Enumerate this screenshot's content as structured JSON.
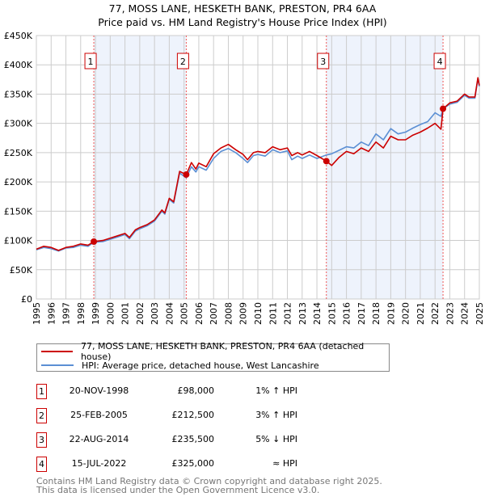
{
  "chart_data": {
    "type": "line",
    "title": "77, MOSS LANE, HESKETH BANK, PRESTON, PR4 6AA",
    "subtitle": "Price paid vs. HM Land Registry's House Price Index (HPI)",
    "xlim": [
      1995,
      2025
    ],
    "ylim": [
      0,
      450000
    ],
    "grid": true,
    "x_ticks": [
      "1995",
      "1996",
      "1997",
      "1998",
      "1999",
      "2000",
      "2001",
      "2002",
      "2003",
      "2004",
      "2005",
      "2006",
      "2007",
      "2008",
      "2009",
      "2010",
      "2011",
      "2012",
      "2013",
      "2014",
      "2015",
      "2016",
      "2017",
      "2018",
      "2019",
      "2020",
      "2021",
      "2022",
      "2023",
      "2024",
      "2025"
    ],
    "y_ticks": [
      {
        "v": 0,
        "label": "£0"
      },
      {
        "v": 50000,
        "label": "£50K"
      },
      {
        "v": 100000,
        "label": "£100K"
      },
      {
        "v": 150000,
        "label": "£150K"
      },
      {
        "v": 200000,
        "label": "£200K"
      },
      {
        "v": 250000,
        "label": "£250K"
      },
      {
        "v": 300000,
        "label": "£300K"
      },
      {
        "v": 350000,
        "label": "£350K"
      },
      {
        "v": 400000,
        "label": "£400K"
      },
      {
        "v": 450000,
        "label": "£450K"
      }
    ],
    "series": [
      {
        "name": "77, MOSS LANE, HESKETH BANK, PRESTON, PR4 6AA (detached house)",
        "color": "#cc0000",
        "x": [
          1995,
          1995.5,
          1996,
          1996.5,
          1997,
          1997.5,
          1998,
          1998.5,
          1998.89,
          1999.5,
          2000,
          2000.5,
          2001,
          2001.3,
          2001.7,
          2002,
          2002.5,
          2003,
          2003.5,
          2003.7,
          2004,
          2004.3,
          2004.7,
          2005.15,
          2005.5,
          2005.8,
          2006,
          2006.5,
          2007,
          2007.5,
          2008,
          2008.5,
          2009,
          2009.3,
          2009.7,
          2010,
          2010.5,
          2011,
          2011.5,
          2012,
          2012.3,
          2012.7,
          2013,
          2013.5,
          2014,
          2014.64,
          2015,
          2015.5,
          2016,
          2016.5,
          2017,
          2017.5,
          2018,
          2018.5,
          2019,
          2019.5,
          2020,
          2020.5,
          2021,
          2021.5,
          2022,
          2022.4,
          2022.54,
          2023,
          2023.5,
          2024,
          2024.3,
          2024.7,
          2024.9,
          2025
        ],
        "y": [
          85000,
          90000,
          88000,
          83000,
          88000,
          90000,
          94000,
          92000,
          98000,
          100000,
          104000,
          108000,
          112000,
          105000,
          118000,
          122000,
          127000,
          135000,
          152000,
          147000,
          172000,
          166000,
          218000,
          212500,
          233000,
          222000,
          232000,
          226000,
          248000,
          258000,
          264000,
          255000,
          247000,
          238000,
          250000,
          252000,
          250000,
          260000,
          255000,
          258000,
          245000,
          250000,
          246000,
          252000,
          245000,
          235500,
          228000,
          242000,
          252000,
          248000,
          258000,
          252000,
          268000,
          258000,
          278000,
          272000,
          272000,
          280000,
          285000,
          292000,
          300000,
          290000,
          325000,
          335000,
          338000,
          350000,
          345000,
          345000,
          378000,
          365000
        ]
      },
      {
        "name": "HPI: Average price, detached house, West Lancashire",
        "color": "#5b8fd4",
        "x": [
          1995,
          1995.5,
          1996,
          1996.5,
          1997,
          1997.5,
          1998,
          1998.5,
          1998.89,
          1999.5,
          2000,
          2000.5,
          2001,
          2001.3,
          2001.7,
          2002,
          2002.5,
          2003,
          2003.5,
          2003.7,
          2004,
          2004.3,
          2004.7,
          2005.15,
          2005.5,
          2005.8,
          2006,
          2006.5,
          2007,
          2007.5,
          2008,
          2008.5,
          2009,
          2009.3,
          2009.7,
          2010,
          2010.5,
          2011,
          2011.5,
          2012,
          2012.3,
          2012.7,
          2013,
          2013.5,
          2014,
          2014.64,
          2015,
          2015.5,
          2016,
          2016.5,
          2017,
          2017.5,
          2018,
          2018.5,
          2019,
          2019.5,
          2020,
          2020.5,
          2021,
          2021.5,
          2022,
          2022.4,
          2022.54,
          2023,
          2023.5,
          2024,
          2024.3,
          2024.7,
          2024.9,
          2025
        ],
        "y": [
          84000,
          88000,
          86000,
          82000,
          87000,
          88000,
          92000,
          90000,
          97000,
          98000,
          102000,
          106000,
          110000,
          103000,
          116000,
          120000,
          125000,
          133000,
          150000,
          145000,
          170000,
          164000,
          215000,
          207000,
          226000,
          217000,
          226000,
          220000,
          240000,
          252000,
          257000,
          250000,
          240000,
          233000,
          245000,
          247000,
          244000,
          255000,
          250000,
          253000,
          238000,
          244000,
          240000,
          246000,
          240000,
          246000,
          248000,
          254000,
          260000,
          258000,
          268000,
          262000,
          282000,
          272000,
          291000,
          282000,
          285000,
          292000,
          298000,
          303000,
          318000,
          312000,
          325000,
          333000,
          336000,
          348000,
          343000,
          343000,
          376000,
          363000
        ]
      }
    ],
    "sales": [
      {
        "label": "1",
        "x": 1998.89,
        "y": 98000
      },
      {
        "label": "2",
        "x": 2005.15,
        "y": 212500
      },
      {
        "label": "3",
        "x": 2014.64,
        "y": 235500
      },
      {
        "label": "4",
        "x": 2022.54,
        "y": 325000
      }
    ]
  },
  "legend": {
    "property": "77, MOSS LANE, HESKETH BANK, PRESTON, PR4 6AA (detached house)",
    "hpi": "HPI: Average price, detached house, West Lancashire"
  },
  "table": [
    {
      "num": "1",
      "date": "20-NOV-1998",
      "price": "£98,000",
      "hpi": "1% ↑ HPI"
    },
    {
      "num": "2",
      "date": "25-FEB-2005",
      "price": "£212,500",
      "hpi": "3% ↑ HPI"
    },
    {
      "num": "3",
      "date": "22-AUG-2014",
      "price": "£235,500",
      "hpi": "5% ↓ HPI"
    },
    {
      "num": "4",
      "date": "15-JUL-2022",
      "price": "£325,000",
      "hpi": "≈ HPI"
    }
  ],
  "footer": {
    "line1": "Contains HM Land Registry data © Crown copyright and database right 2025.",
    "line2": "This data is licensed under the Open Government Licence v3.0."
  },
  "colors": {
    "price": "#cc0000",
    "hpi": "#5b8fd4",
    "shade": "#eef3fc",
    "grid": "#cccccc"
  }
}
